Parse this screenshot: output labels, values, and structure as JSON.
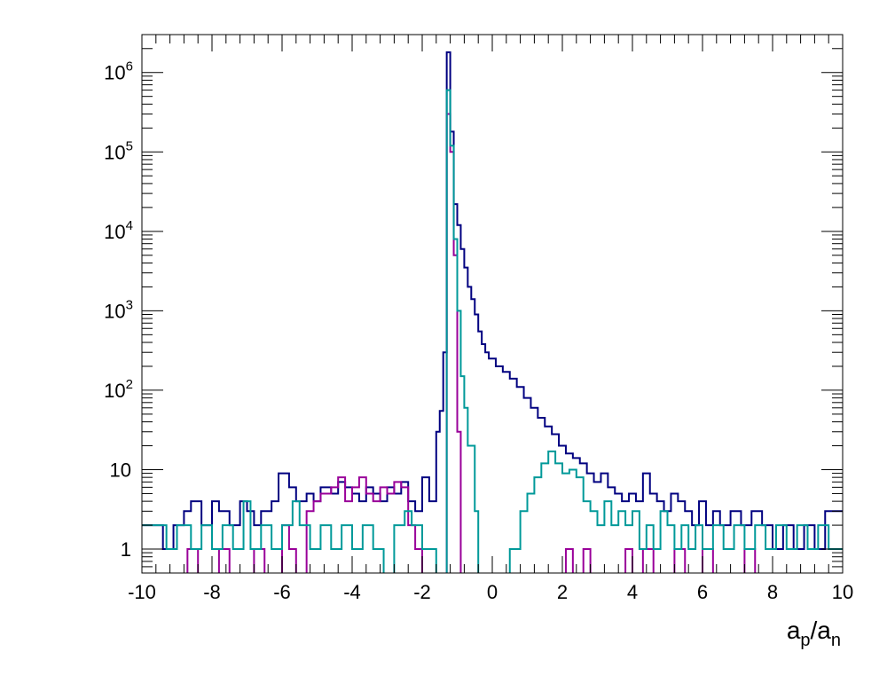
{
  "chart_data": {
    "type": "histogram",
    "title": "",
    "xlabel": "a_p/a_n",
    "xlabel_parts": {
      "a1": "a",
      "sub1": "p",
      "slash": "/",
      "a2": "a",
      "sub2": "n"
    },
    "ylabel": "",
    "xlim": [
      -10,
      10
    ],
    "ylim": [
      0.5,
      3000000
    ],
    "y_scale": "log",
    "grid": false,
    "legend": "none",
    "x_ticks": [
      -10,
      -8,
      -6,
      -4,
      -2,
      0,
      2,
      4,
      6,
      8,
      10
    ],
    "x_tick_labels": [
      "-10",
      "-8",
      "-6",
      "-4",
      "-2",
      "0",
      "2",
      "4",
      "6",
      "8",
      "10"
    ],
    "y_ticks": [
      {
        "value": 1,
        "base": "1",
        "exp": ""
      },
      {
        "value": 10,
        "base": "10",
        "exp": ""
      },
      {
        "value": 100,
        "base": "10",
        "exp": "2"
      },
      {
        "value": 1000,
        "base": "10",
        "exp": "3"
      },
      {
        "value": 10000,
        "base": "10",
        "exp": "4"
      },
      {
        "value": 100000,
        "base": "10",
        "exp": "5"
      },
      {
        "value": 1000000,
        "base": "10",
        "exp": "6"
      }
    ],
    "series": [
      {
        "color": "#000080",
        "bins": [
          [
            -10.0,
            -9.4,
            2
          ],
          [
            -9.4,
            -9.1,
            1
          ],
          [
            -9.1,
            -8.8,
            2
          ],
          [
            -8.8,
            -8.6,
            3
          ],
          [
            -8.6,
            -8.3,
            4
          ],
          [
            -8.3,
            -8.0,
            2
          ],
          [
            -8.0,
            -7.8,
            4
          ],
          [
            -7.8,
            -7.5,
            3
          ],
          [
            -7.5,
            -7.2,
            2
          ],
          [
            -7.2,
            -7.0,
            4
          ],
          [
            -7.0,
            -6.8,
            3
          ],
          [
            -6.8,
            -6.6,
            2
          ],
          [
            -6.6,
            -6.3,
            3
          ],
          [
            -6.3,
            -6.1,
            4
          ],
          [
            -6.1,
            -5.8,
            9
          ],
          [
            -5.8,
            -5.6,
            6
          ],
          [
            -5.6,
            -5.3,
            4
          ],
          [
            -5.3,
            -5.1,
            5
          ],
          [
            -5.1,
            -4.9,
            4
          ],
          [
            -4.9,
            -4.6,
            6
          ],
          [
            -4.6,
            -4.4,
            5
          ],
          [
            -4.4,
            -4.2,
            7
          ],
          [
            -4.2,
            -4.0,
            6
          ],
          [
            -4.0,
            -3.8,
            5
          ],
          [
            -3.8,
            -3.6,
            4
          ],
          [
            -3.6,
            -3.4,
            6
          ],
          [
            -3.4,
            -3.2,
            5
          ],
          [
            -3.2,
            -3.0,
            4
          ],
          [
            -3.0,
            -2.8,
            6
          ],
          [
            -2.8,
            -2.6,
            5
          ],
          [
            -2.6,
            -2.4,
            7
          ],
          [
            -2.4,
            -2.2,
            4
          ],
          [
            -2.2,
            -2.0,
            3
          ],
          [
            -2.0,
            -1.8,
            8
          ],
          [
            -1.8,
            -1.6,
            4
          ],
          [
            -1.6,
            -1.5,
            30
          ],
          [
            -1.5,
            -1.4,
            55
          ],
          [
            -1.4,
            -1.3,
            300
          ],
          [
            -1.3,
            -1.2,
            1800000
          ],
          [
            -1.2,
            -1.1,
            180000
          ],
          [
            -1.1,
            -1.0,
            22000
          ],
          [
            -1.0,
            -0.9,
            12000
          ],
          [
            -0.9,
            -0.8,
            6000
          ],
          [
            -0.8,
            -0.7,
            3500
          ],
          [
            -0.7,
            -0.6,
            2000
          ],
          [
            -0.6,
            -0.5,
            1400
          ],
          [
            -0.5,
            -0.4,
            900
          ],
          [
            -0.4,
            -0.3,
            550
          ],
          [
            -0.3,
            -0.2,
            380
          ],
          [
            -0.2,
            -0.1,
            300
          ],
          [
            -0.1,
            0.1,
            250
          ],
          [
            0.1,
            0.3,
            200
          ],
          [
            0.3,
            0.5,
            170
          ],
          [
            0.5,
            0.7,
            140
          ],
          [
            0.7,
            0.9,
            110
          ],
          [
            0.9,
            1.1,
            80
          ],
          [
            1.1,
            1.3,
            60
          ],
          [
            1.3,
            1.5,
            45
          ],
          [
            1.5,
            1.7,
            35
          ],
          [
            1.7,
            1.9,
            28
          ],
          [
            1.9,
            2.1,
            20
          ],
          [
            2.1,
            2.3,
            16
          ],
          [
            2.3,
            2.5,
            14
          ],
          [
            2.5,
            2.7,
            12
          ],
          [
            2.7,
            2.9,
            9
          ],
          [
            2.9,
            3.1,
            7
          ],
          [
            3.1,
            3.3,
            9
          ],
          [
            3.3,
            3.5,
            6
          ],
          [
            3.5,
            3.7,
            5
          ],
          [
            3.7,
            3.9,
            4
          ],
          [
            3.9,
            4.1,
            5
          ],
          [
            4.1,
            4.3,
            4
          ],
          [
            4.3,
            4.5,
            9
          ],
          [
            4.5,
            4.7,
            5
          ],
          [
            4.7,
            4.9,
            4
          ],
          [
            4.9,
            5.1,
            3
          ],
          [
            5.1,
            5.3,
            5
          ],
          [
            5.3,
            5.5,
            4
          ],
          [
            5.5,
            5.7,
            3
          ],
          [
            5.7,
            5.9,
            2
          ],
          [
            5.9,
            6.1,
            4
          ],
          [
            6.1,
            6.3,
            2
          ],
          [
            6.3,
            6.5,
            3
          ],
          [
            6.5,
            6.8,
            2
          ],
          [
            6.8,
            7.1,
            3
          ],
          [
            7.1,
            7.4,
            2
          ],
          [
            7.4,
            7.7,
            3
          ],
          [
            7.7,
            8.0,
            2
          ],
          [
            8.0,
            8.3,
            1
          ],
          [
            8.3,
            8.6,
            2
          ],
          [
            8.6,
            8.9,
            1
          ],
          [
            8.9,
            9.2,
            2
          ],
          [
            9.2,
            9.5,
            1
          ],
          [
            9.5,
            10.0,
            3
          ]
        ]
      },
      {
        "color": "#990099",
        "bins": [
          [
            -10.0,
            -8.7,
            0
          ],
          [
            -8.7,
            -8.4,
            1
          ],
          [
            -8.4,
            -7.8,
            0
          ],
          [
            -7.8,
            -7.5,
            1
          ],
          [
            -7.5,
            -6.8,
            0
          ],
          [
            -6.8,
            -6.5,
            1
          ],
          [
            -6.5,
            -6.0,
            0
          ],
          [
            -6.0,
            -5.8,
            2
          ],
          [
            -5.8,
            -5.6,
            1
          ],
          [
            -5.6,
            -5.3,
            0
          ],
          [
            -5.3,
            -5.1,
            3
          ],
          [
            -5.1,
            -4.9,
            4
          ],
          [
            -4.9,
            -4.6,
            5
          ],
          [
            -4.6,
            -4.4,
            6
          ],
          [
            -4.4,
            -4.2,
            8
          ],
          [
            -4.2,
            -4.0,
            4
          ],
          [
            -4.0,
            -3.8,
            6
          ],
          [
            -3.8,
            -3.6,
            8
          ],
          [
            -3.6,
            -3.4,
            5
          ],
          [
            -3.4,
            -3.2,
            4
          ],
          [
            -3.2,
            -3.0,
            6
          ],
          [
            -3.0,
            -2.8,
            5
          ],
          [
            -2.8,
            -2.6,
            7
          ],
          [
            -2.6,
            -2.4,
            6
          ],
          [
            -2.4,
            -2.2,
            2
          ],
          [
            -2.2,
            -2.0,
            1
          ],
          [
            -2.0,
            -1.3,
            0
          ],
          [
            -1.3,
            -1.2,
            300000
          ],
          [
            -1.2,
            -1.1,
            100000
          ],
          [
            -1.1,
            -1.0,
            5000
          ],
          [
            -1.0,
            -0.9,
            30
          ],
          [
            -0.9,
            2.1,
            0
          ],
          [
            2.1,
            2.3,
            1
          ],
          [
            2.3,
            2.6,
            0
          ],
          [
            2.6,
            2.8,
            1
          ],
          [
            2.8,
            3.8,
            0
          ],
          [
            3.8,
            4.0,
            1
          ],
          [
            4.0,
            4.3,
            0
          ],
          [
            4.3,
            4.6,
            1
          ],
          [
            4.6,
            5.2,
            0
          ],
          [
            5.2,
            5.5,
            1
          ],
          [
            5.5,
            6.0,
            0
          ],
          [
            6.0,
            6.3,
            1
          ],
          [
            6.3,
            7.2,
            0
          ],
          [
            7.2,
            7.5,
            1
          ],
          [
            7.5,
            10.0,
            0
          ]
        ]
      },
      {
        "color": "#009999",
        "bins": [
          [
            -10.0,
            -9.3,
            2
          ],
          [
            -9.3,
            -9.0,
            1
          ],
          [
            -9.0,
            -8.6,
            2
          ],
          [
            -8.6,
            -8.3,
            1
          ],
          [
            -8.3,
            -8.0,
            2
          ],
          [
            -8.0,
            -7.7,
            1
          ],
          [
            -7.7,
            -7.4,
            2
          ],
          [
            -7.4,
            -7.1,
            1
          ],
          [
            -7.1,
            -6.9,
            4
          ],
          [
            -6.9,
            -6.6,
            1
          ],
          [
            -6.6,
            -6.3,
            2
          ],
          [
            -6.3,
            -6.0,
            1
          ],
          [
            -6.0,
            -5.7,
            2
          ],
          [
            -5.7,
            -5.5,
            4
          ],
          [
            -5.5,
            -5.2,
            2
          ],
          [
            -5.2,
            -4.9,
            1
          ],
          [
            -4.9,
            -4.6,
            2
          ],
          [
            -4.6,
            -4.3,
            1
          ],
          [
            -4.3,
            -4.0,
            2
          ],
          [
            -4.0,
            -3.7,
            1
          ],
          [
            -3.7,
            -3.4,
            2
          ],
          [
            -3.4,
            -3.1,
            1
          ],
          [
            -3.1,
            -2.8,
            0
          ],
          [
            -2.8,
            -2.5,
            2
          ],
          [
            -2.5,
            -2.3,
            3
          ],
          [
            -2.3,
            -2.0,
            2
          ],
          [
            -2.0,
            -1.6,
            1
          ],
          [
            -1.6,
            -1.3,
            0
          ],
          [
            -1.3,
            -1.2,
            600000
          ],
          [
            -1.2,
            -1.1,
            120000
          ],
          [
            -1.1,
            -1.0,
            8000
          ],
          [
            -1.0,
            -0.9,
            1000
          ],
          [
            -0.9,
            -0.8,
            150
          ],
          [
            -0.8,
            -0.7,
            60
          ],
          [
            -0.7,
            -0.5,
            20
          ],
          [
            -0.5,
            -0.4,
            3
          ],
          [
            -0.4,
            0.5,
            0
          ],
          [
            0.5,
            0.8,
            1
          ],
          [
            0.8,
            1.0,
            3
          ],
          [
            1.0,
            1.2,
            5
          ],
          [
            1.2,
            1.4,
            8
          ],
          [
            1.4,
            1.6,
            12
          ],
          [
            1.6,
            1.8,
            17
          ],
          [
            1.8,
            2.0,
            12
          ],
          [
            2.0,
            2.2,
            9
          ],
          [
            2.2,
            2.4,
            10
          ],
          [
            2.4,
            2.6,
            8
          ],
          [
            2.6,
            2.8,
            4
          ],
          [
            2.8,
            3.0,
            3
          ],
          [
            3.0,
            3.2,
            2
          ],
          [
            3.2,
            3.4,
            4
          ],
          [
            3.4,
            3.6,
            2
          ],
          [
            3.6,
            3.8,
            3
          ],
          [
            3.8,
            4.0,
            2
          ],
          [
            4.0,
            4.2,
            3
          ],
          [
            4.2,
            4.4,
            1
          ],
          [
            4.4,
            4.6,
            2
          ],
          [
            4.6,
            4.8,
            1
          ],
          [
            4.8,
            5.0,
            3
          ],
          [
            5.0,
            5.2,
            2
          ],
          [
            5.2,
            5.4,
            1
          ],
          [
            5.4,
            5.6,
            2
          ],
          [
            5.6,
            5.8,
            1
          ],
          [
            5.8,
            6.0,
            2
          ],
          [
            6.0,
            6.3,
            1
          ],
          [
            6.3,
            6.6,
            2
          ],
          [
            6.6,
            6.9,
            1
          ],
          [
            6.9,
            7.2,
            2
          ],
          [
            7.2,
            7.5,
            1
          ],
          [
            7.5,
            7.8,
            2
          ],
          [
            7.8,
            8.1,
            1
          ],
          [
            8.1,
            8.4,
            2
          ],
          [
            8.4,
            8.7,
            1
          ],
          [
            8.7,
            9.0,
            2
          ],
          [
            9.0,
            9.3,
            1
          ],
          [
            9.3,
            9.6,
            2
          ],
          [
            9.6,
            10.0,
            1
          ]
        ]
      }
    ]
  }
}
